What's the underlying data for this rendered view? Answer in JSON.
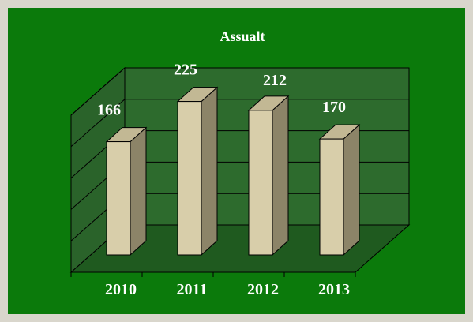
{
  "chart_data": {
    "type": "bar",
    "title": "Assualt",
    "categories": [
      "2010",
      "2011",
      "2012",
      "2013"
    ],
    "values": [
      166,
      225,
      212,
      170
    ],
    "ylim": [
      0,
      250
    ],
    "grid": true,
    "legend": "none",
    "three_d": true
  },
  "colors": {
    "page_texture": "#d9d6cc",
    "chart_background": "#0b7a0b",
    "back_wall": "#2d6b2d",
    "side_wall": "#2a632a",
    "floor": "#1f5a1f",
    "gridline": "#000000",
    "bar_front": "#d8ceaa",
    "bar_side": "#8c8468",
    "bar_top": "#c2b894",
    "text": "#ffffff"
  }
}
